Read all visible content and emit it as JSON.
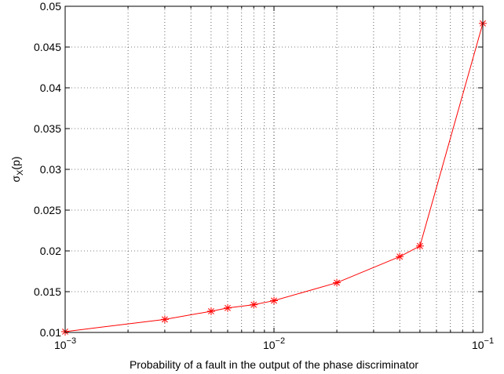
{
  "chart_data": {
    "type": "line",
    "xscale": "log",
    "xlim": [
      0.001,
      0.1
    ],
    "ylim": [
      0.01,
      0.05
    ],
    "grid": true,
    "xlabel": "Probability of a fault in the output of the phase discriminator",
    "ylabel": {
      "base": "σ",
      "sub": "X",
      "suffix": "(p)"
    },
    "x_ticks": [
      {
        "value": 0.001,
        "base": "10",
        "exp": "−3"
      },
      {
        "value": 0.01,
        "base": "10",
        "exp": "−2"
      },
      {
        "value": 0.1,
        "base": "10",
        "exp": "−1"
      }
    ],
    "y_ticks": [
      "0.01",
      "0.015",
      "0.02",
      "0.025",
      "0.03",
      "0.035",
      "0.04",
      "0.045",
      "0.05"
    ],
    "series": [
      {
        "color": "#ff0000",
        "marker": "asterisk",
        "x": [
          0.001,
          0.003,
          0.005,
          0.006,
          0.008,
          0.01,
          0.02,
          0.04,
          0.05,
          0.1
        ],
        "y": [
          0.0101,
          0.0116,
          0.0126,
          0.013,
          0.0134,
          0.0139,
          0.0161,
          0.0193,
          0.0206,
          0.0479
        ]
      }
    ]
  }
}
